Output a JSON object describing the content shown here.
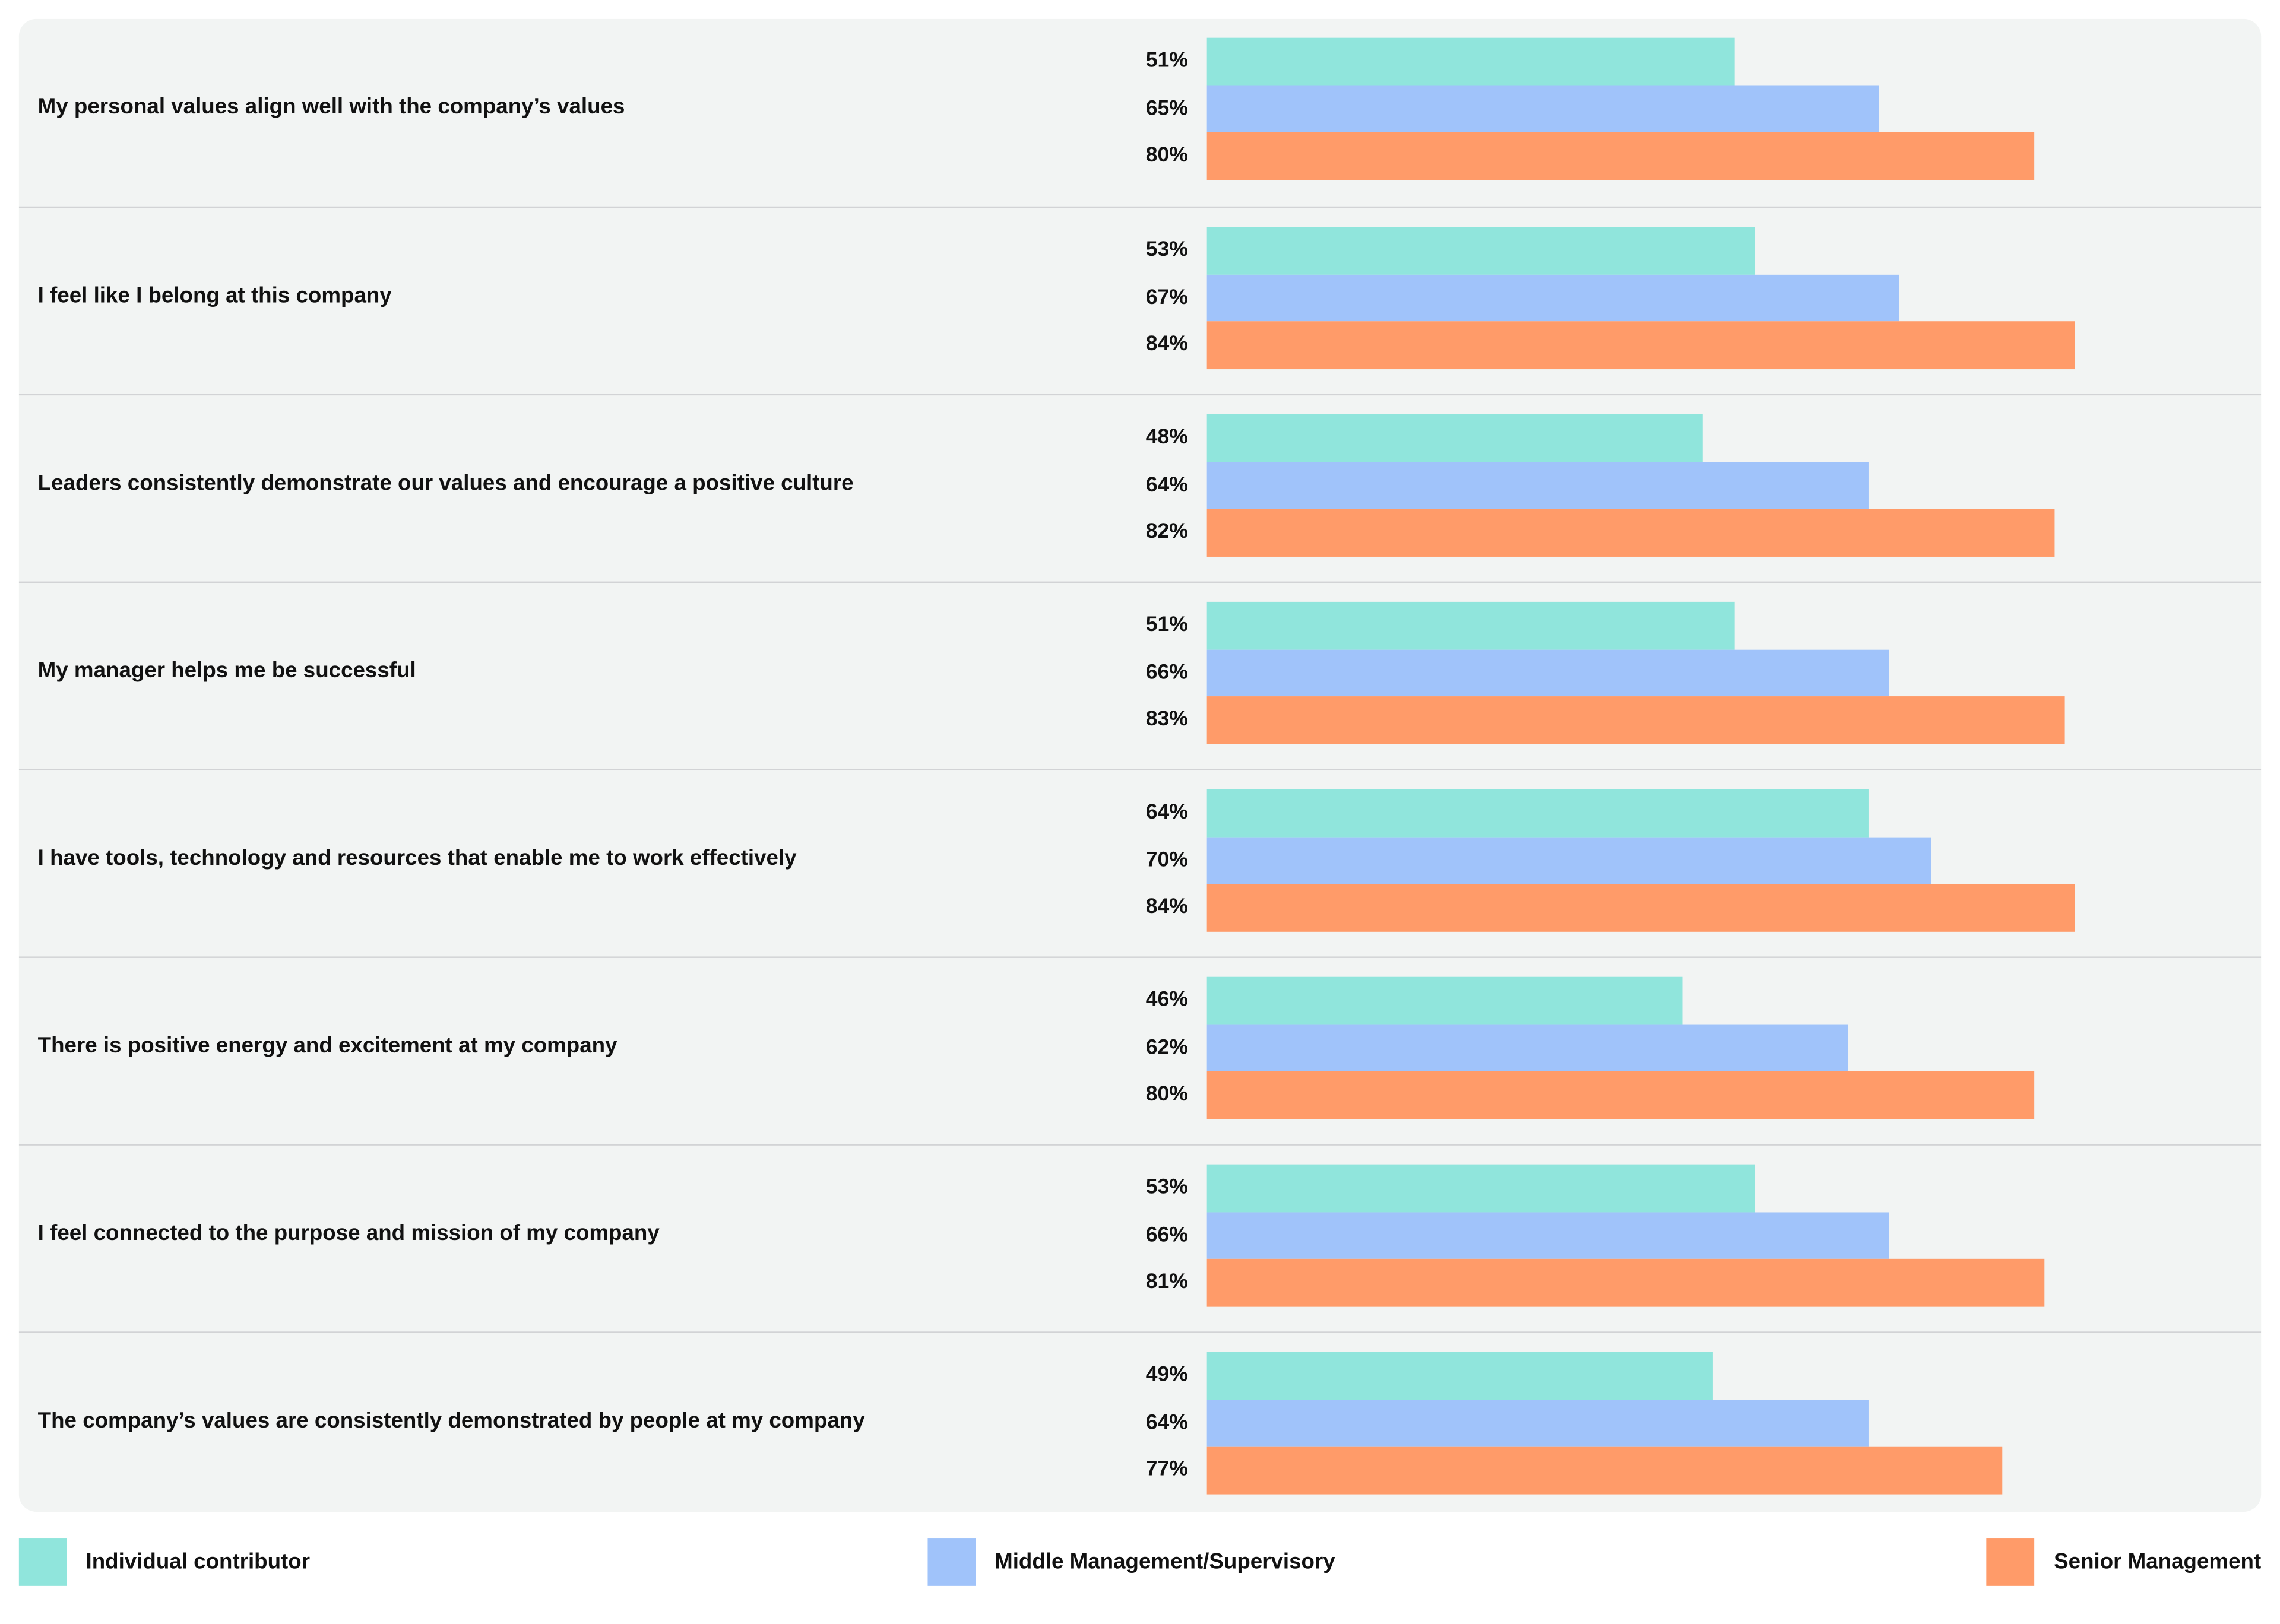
{
  "chart_data": {
    "type": "bar",
    "orientation": "horizontal",
    "categories": [
      "My personal values align well with the company’s values",
      "I feel like I belong at this company",
      "Leaders consistently demonstrate our values and encourage a positive culture",
      "My manager helps me be successful",
      "I have tools, technology and resources that enable me to work effectively",
      "There is positive energy and excitement at my company",
      "I feel connected to the purpose and mission of my company",
      "The company’s values are consistently demonstrated by people at my company"
    ],
    "series": [
      {
        "name": "Individual contributor",
        "color": "#90e5dc",
        "values": [
          51,
          53,
          48,
          51,
          64,
          46,
          53,
          49
        ]
      },
      {
        "name": "Middle Management/Supervisory",
        "color": "#a0c3fa",
        "values": [
          65,
          67,
          64,
          66,
          70,
          62,
          66,
          64
        ]
      },
      {
        "name": "Senior Management",
        "color": "#ff9b69",
        "values": [
          80,
          84,
          82,
          83,
          84,
          80,
          81,
          77
        ]
      }
    ],
    "value_suffix": "%",
    "xlim": [
      0,
      100
    ],
    "legend_position": "bottom",
    "grid": false
  }
}
